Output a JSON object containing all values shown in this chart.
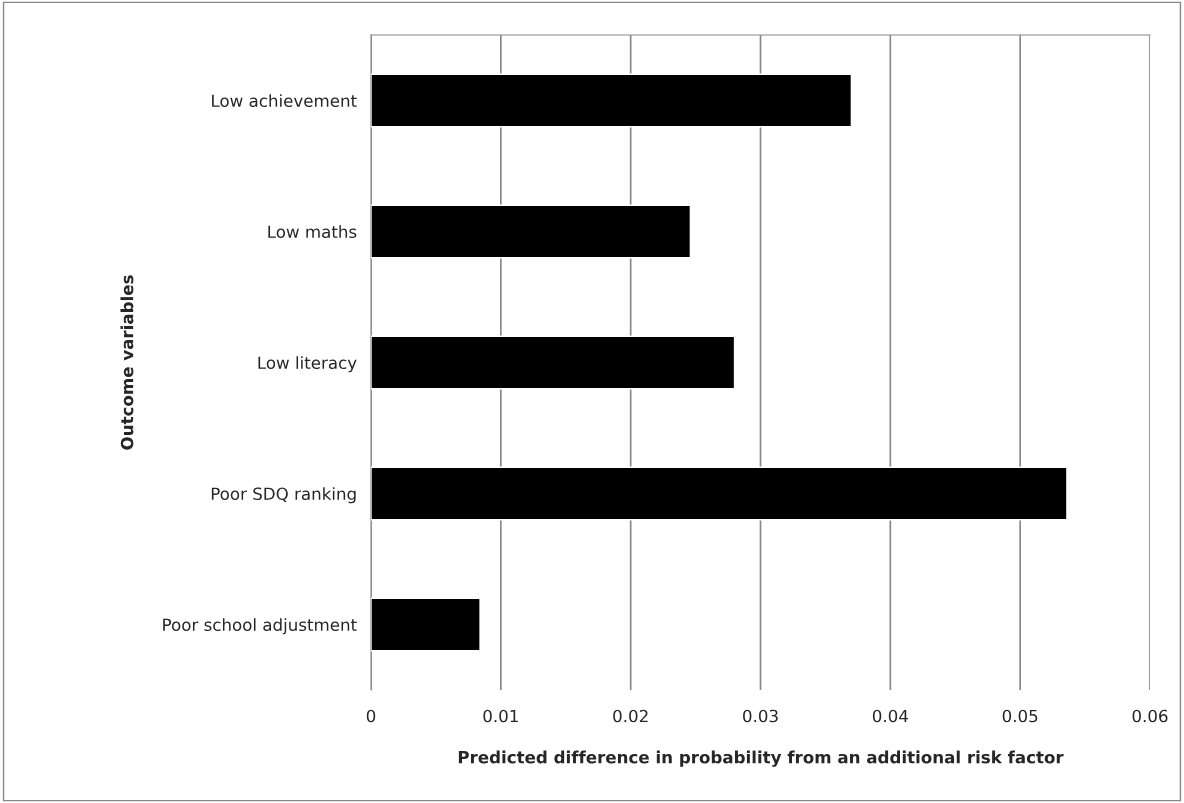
{
  "chart_data": {
    "type": "bar",
    "orientation": "horizontal",
    "categories": [
      "Low achievement",
      "Low maths",
      "Low literacy",
      "Poor SDQ ranking",
      "Poor school adjustment"
    ],
    "values": [
      0.037,
      0.0246,
      0.028,
      0.0536,
      0.0084
    ],
    "color": "#000000",
    "xlim": [
      0,
      0.06
    ],
    "xticks": [
      0,
      0.01,
      0.02,
      0.03,
      0.04,
      0.05,
      0.06
    ],
    "xlabel": "Predicted difference in probability from an additional risk factor",
    "ylabel": "Outcome variables",
    "grid": "x"
  }
}
